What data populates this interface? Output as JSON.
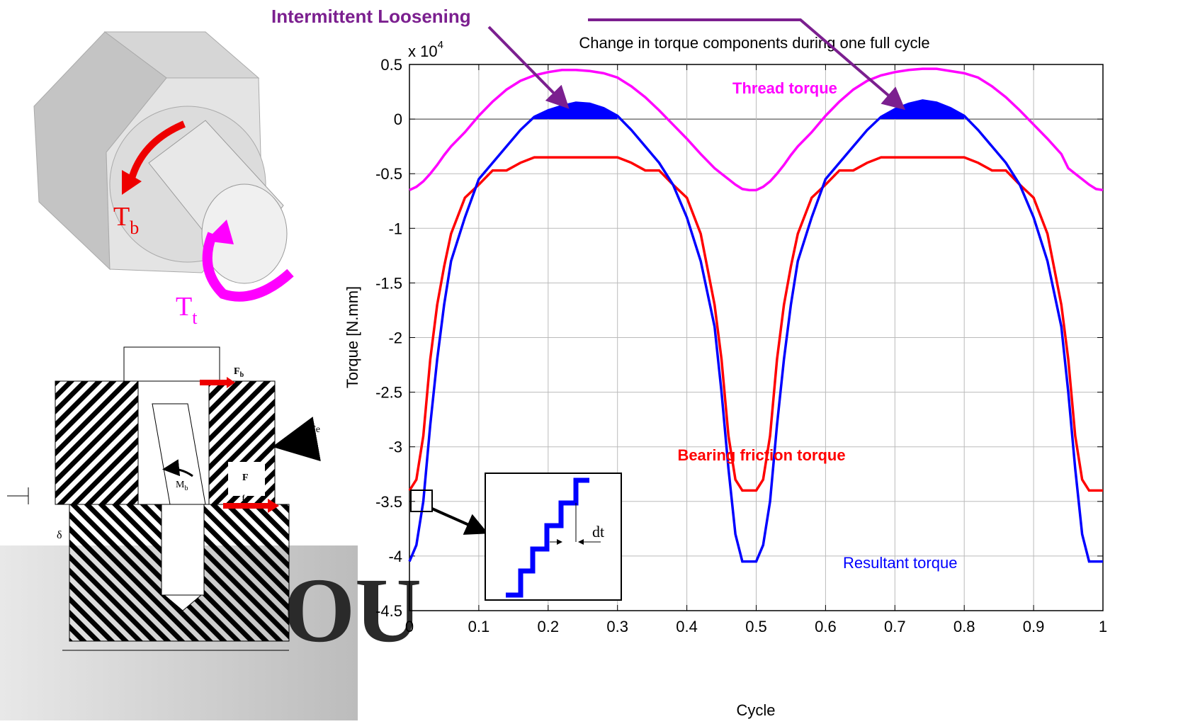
{
  "chart_data": {
    "type": "line",
    "title": "Change in torque components during one full cycle",
    "x_label": "Cycle",
    "y_label": "Torque [N.mm]",
    "y_multiplier": {
      "base": "x 10",
      "exponent": "4"
    },
    "x": [
      0,
      0.01,
      0.02,
      0.03,
      0.04,
      0.05,
      0.06,
      0.08,
      0.1,
      0.12,
      0.14,
      0.16,
      0.18,
      0.2,
      0.22,
      0.24,
      0.26,
      0.28,
      0.3,
      0.32,
      0.34,
      0.36,
      0.38,
      0.4,
      0.42,
      0.44,
      0.45,
      0.46,
      0.47,
      0.48,
      0.49,
      0.5,
      0.51,
      0.52,
      0.53,
      0.54,
      0.55,
      0.56,
      0.58,
      0.6,
      0.62,
      0.64,
      0.66,
      0.68,
      0.7,
      0.72,
      0.74,
      0.76,
      0.78,
      0.8,
      0.82,
      0.84,
      0.86,
      0.88,
      0.9,
      0.92,
      0.94,
      0.95,
      0.96,
      0.97,
      0.98,
      0.99,
      1
    ],
    "xlim": [
      0,
      1
    ],
    "ylim": [
      -4.5,
      0.5
    ],
    "xticks": [
      0,
      0.1,
      0.2,
      0.3,
      0.4,
      0.5,
      0.6,
      0.7,
      0.8,
      0.9,
      1
    ],
    "yticks": [
      -4.5,
      -4,
      -3.5,
      -3,
      -2.5,
      -2,
      -1.5,
      -1,
      -0.5,
      0,
      0.5
    ],
    "grid": true,
    "series": [
      {
        "name": "Thread torque",
        "color": "#ff00ff",
        "values": [
          -0.65,
          -0.62,
          -0.57,
          -0.5,
          -0.42,
          -0.33,
          -0.25,
          -0.12,
          0.03,
          0.16,
          0.27,
          0.35,
          0.4,
          0.43,
          0.45,
          0.45,
          0.44,
          0.42,
          0.38,
          0.3,
          0.2,
          0.08,
          -0.05,
          -0.18,
          -0.32,
          -0.45,
          -0.5,
          -0.55,
          -0.6,
          -0.64,
          -0.65,
          -0.65,
          -0.62,
          -0.57,
          -0.5,
          -0.42,
          -0.33,
          -0.25,
          -0.12,
          0.03,
          0.16,
          0.27,
          0.35,
          0.4,
          0.43,
          0.45,
          0.46,
          0.46,
          0.44,
          0.42,
          0.38,
          0.3,
          0.2,
          0.08,
          -0.05,
          -0.18,
          -0.32,
          -0.45,
          -0.5,
          -0.55,
          -0.6,
          -0.64,
          -0.65
        ]
      },
      {
        "name": "Bearing friction torque",
        "color": "#ff0000",
        "values": [
          -3.4,
          -3.3,
          -2.9,
          -2.2,
          -1.7,
          -1.35,
          -1.05,
          -0.72,
          -0.6,
          -0.47,
          -0.47,
          -0.4,
          -0.35,
          -0.35,
          -0.35,
          -0.35,
          -0.35,
          -0.35,
          -0.35,
          -0.4,
          -0.47,
          -0.47,
          -0.6,
          -0.72,
          -1.05,
          -1.7,
          -2.2,
          -2.9,
          -3.3,
          -3.4,
          -3.4,
          -3.4,
          -3.3,
          -2.9,
          -2.2,
          -1.7,
          -1.35,
          -1.05,
          -0.72,
          -0.6,
          -0.47,
          -0.47,
          -0.4,
          -0.35,
          -0.35,
          -0.35,
          -0.35,
          -0.35,
          -0.35,
          -0.35,
          -0.4,
          -0.47,
          -0.47,
          -0.6,
          -0.72,
          -1.05,
          -1.7,
          -2.2,
          -2.9,
          -3.3,
          -3.4,
          -3.4,
          -3.4
        ]
      },
      {
        "name": "Resultant torque",
        "color": "#0000ff",
        "fill_positive": true,
        "values": [
          -4.05,
          -3.9,
          -3.5,
          -2.8,
          -2.2,
          -1.7,
          -1.3,
          -0.9,
          -0.55,
          -0.4,
          -0.25,
          -0.1,
          0.02,
          0.08,
          0.12,
          0.15,
          0.14,
          0.1,
          0.03,
          -0.1,
          -0.25,
          -0.4,
          -0.6,
          -0.9,
          -1.3,
          -1.9,
          -2.5,
          -3.2,
          -3.8,
          -4.05,
          -4.05,
          -4.05,
          -3.9,
          -3.5,
          -2.8,
          -2.2,
          -1.7,
          -1.3,
          -0.9,
          -0.55,
          -0.4,
          -0.25,
          -0.1,
          0.02,
          0.09,
          0.14,
          0.17,
          0.15,
          0.1,
          0.03,
          -0.1,
          -0.25,
          -0.4,
          -0.6,
          -0.9,
          -1.3,
          -1.9,
          -2.5,
          -3.2,
          -3.8,
          -4.05,
          -4.05,
          -4.05
        ]
      }
    ],
    "annotation": "Intermittent Loosening",
    "inset_label": "dt"
  },
  "diagram": {
    "nut_labels": [
      {
        "text": "T",
        "sub": "b"
      },
      {
        "text": "T",
        "sub": "t"
      }
    ],
    "joint_labels": [
      {
        "text": "F",
        "sub": "b"
      },
      {
        "text": "Fe"
      },
      {
        "text": "M",
        "sub": "b"
      },
      {
        "text": "F",
        "sub": "f"
      },
      {
        "text": "δ"
      }
    ],
    "watermark": "OU"
  }
}
